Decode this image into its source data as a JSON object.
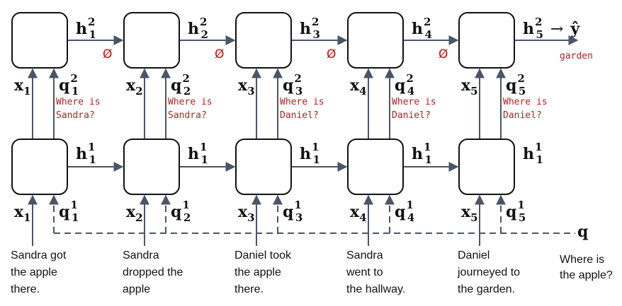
{
  "story_sentences": [
    [
      "Sandra got",
      "the apple",
      "there."
    ],
    [
      "Sandra",
      "dropped the",
      "apple"
    ],
    [
      "Daniel took",
      "the apple",
      "there."
    ],
    [
      "Sandra",
      "went to",
      "the hallway."
    ],
    [
      "Daniel",
      "journeyed to",
      "the garden."
    ]
  ],
  "question": [
    "Where is",
    "the apple?"
  ],
  "question_symbol": "q",
  "input_symbol": "x",
  "hidden_symbol": "h",
  "layer1_queries": [
    "1",
    "1",
    "1",
    "1",
    "1"
  ],
  "layer2_queries": [
    [
      "Where is",
      "Sandra?"
    ],
    [
      "Where is",
      "Sandra?"
    ],
    [
      "Where is",
      "Daniel?"
    ],
    [
      "Where is",
      "Daniel?"
    ],
    [
      "Where is",
      "Daniel?"
    ]
  ],
  "null_symbol": "Ø",
  "layer1_hidden_labels": [
    "1",
    "1",
    "1",
    "1",
    "1"
  ],
  "layer2_hidden_labels": [
    "1",
    "2",
    "3",
    "4",
    "5"
  ],
  "output_arrow": "→",
  "output_symbol": "ŷ",
  "answer": "garden",
  "colors": {
    "box_stroke": "#111111",
    "arrow": "#4a5568",
    "query_text": "#b22222",
    "null": "#cc1111"
  }
}
